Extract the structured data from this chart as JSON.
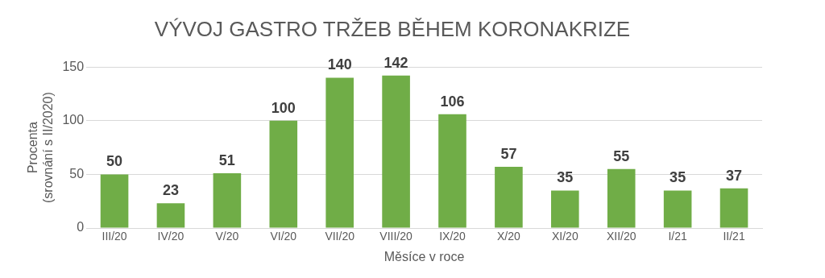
{
  "chart_data": {
    "type": "bar",
    "title": "VÝVOJ GASTRO TRŽEB BĚHEM KORONAKRIZE",
    "xlabel": "Měsíce v roce",
    "ylabel": "Procenta (srovnání s II/2020)",
    "categories": [
      "III/20",
      "IV/20",
      "V/20",
      "VI/20",
      "VII/20",
      "VIII/20",
      "IX/20",
      "X/20",
      "XI/20",
      "XII/20",
      "I/21",
      "II/21"
    ],
    "values": [
      50,
      23,
      51,
      100,
      140,
      142,
      106,
      57,
      35,
      55,
      35,
      37
    ],
    "color": "#70ad47",
    "ylim": [
      0,
      150
    ],
    "yticks": [
      0,
      50,
      100,
      150
    ],
    "grid": "y",
    "legend": false,
    "data_labels": true
  }
}
